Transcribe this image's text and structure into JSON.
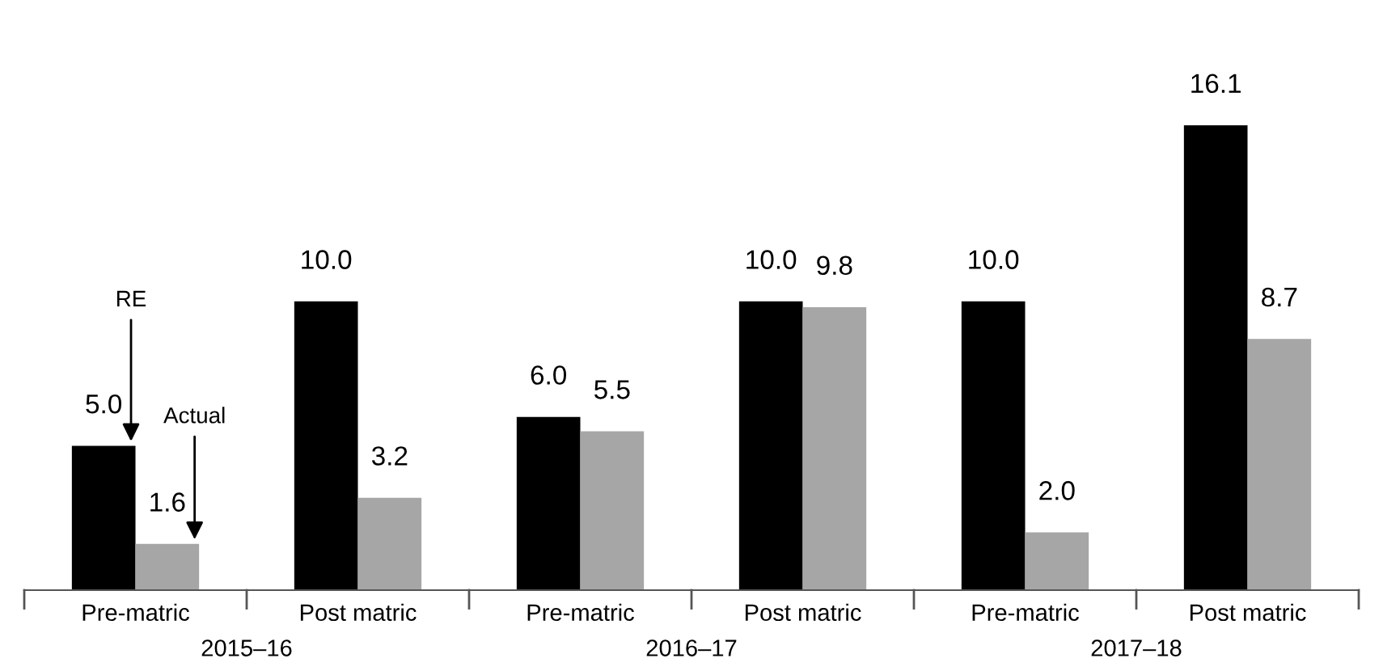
{
  "chart_data": {
    "type": "bar",
    "categories": [
      "Pre-matric",
      "Post matric",
      "Pre-matric",
      "Post matric",
      "Pre-matric",
      "Post matric"
    ],
    "series": [
      {
        "color": "#000000",
        "values": [
          5.0,
          10.0,
          6.0,
          10.0,
          10.0,
          16.1
        ],
        "value_labels": [
          "5.0",
          "10.0",
          "6.0",
          "10.0",
          "10.0",
          "16.1"
        ]
      },
      {
        "color": "#a6a6a6",
        "values": [
          1.6,
          3.2,
          5.5,
          9.8,
          2.0,
          8.7
        ],
        "value_labels": [
          "1.6",
          "3.2",
          "5.5",
          "9.8",
          "2.0",
          "8.7"
        ]
      }
    ],
    "annotations": [
      "RE",
      "Actual",
      "2015–16",
      "2016–17",
      "2017–18"
    ]
  }
}
